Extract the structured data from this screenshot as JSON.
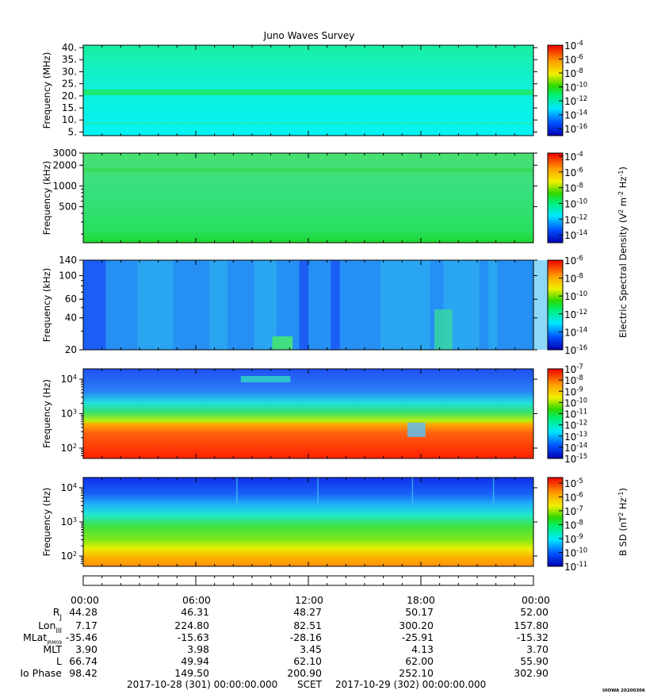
{
  "title": "Juno Waves Survey",
  "chart_data": [
    {
      "type": "heatmap",
      "ylabel": "Frequency (MHz)",
      "y_scale": "linear",
      "ylim": [
        3.5,
        41
      ],
      "y_ticks": [
        5,
        10,
        15,
        20,
        25,
        30,
        35,
        40
      ],
      "y_tick_labels": [
        "5.",
        "10.",
        "15.",
        "20.",
        "25.",
        "30.",
        "35.",
        "40."
      ],
      "colorbar": {
        "scale": "log",
        "range_exp": [
          -17,
          -4
        ],
        "tick_exps": [
          -4,
          -6,
          -8,
          -10,
          -12,
          -14,
          -16
        ],
        "label": ""
      }
    },
    {
      "type": "heatmap",
      "ylabel": "Frequency (kHz)",
      "y_scale": "log",
      "ylim": [
        150,
        3000
      ],
      "y_ticks": [
        500,
        1000,
        2000,
        3000
      ],
      "y_tick_labels": [
        "500",
        "1000",
        "2000",
        "3000"
      ],
      "colorbar": {
        "scale": "log",
        "range_exp": [
          -15,
          -3.6
        ],
        "tick_exps": [
          -4,
          -6,
          -8,
          -10,
          -12,
          -14
        ],
        "label": ""
      }
    },
    {
      "type": "heatmap",
      "ylabel": "Frequency (kHz)",
      "y_scale": "log",
      "ylim": [
        20,
        140
      ],
      "y_ticks": [
        20,
        40,
        60,
        100,
        140
      ],
      "y_tick_labels": [
        "20",
        "40",
        "60",
        "100",
        "140"
      ],
      "colorbar": {
        "scale": "log",
        "range_exp": [
          -16,
          -6
        ],
        "tick_exps": [
          -6,
          -8,
          -10,
          -12,
          -14,
          -16
        ],
        "label": ""
      }
    },
    {
      "type": "heatmap",
      "ylabel": "Frequency (Hz)",
      "y_scale": "log",
      "ylim": [
        50,
        20000
      ],
      "y_ticks": [
        100,
        1000,
        10000
      ],
      "y_tick_labels": [
        "10^2",
        "10^3",
        "10^4"
      ],
      "colorbar": {
        "scale": "log",
        "range_exp": [
          -15,
          -7
        ],
        "tick_exps": [
          -7,
          -8,
          -9,
          -10,
          -11,
          -12,
          -13,
          -14,
          -15
        ],
        "label": ""
      }
    },
    {
      "type": "heatmap",
      "ylabel": "Frequency (Hz)",
      "y_scale": "log",
      "ylim": [
        50,
        20000
      ],
      "y_ticks": [
        100,
        1000,
        10000
      ],
      "y_tick_labels": [
        "10^2",
        "10^3",
        "10^4"
      ],
      "colorbar": {
        "scale": "log",
        "range_exp": [
          -11,
          -4.6
        ],
        "tick_exps": [
          -5,
          -6,
          -7,
          -8,
          -9,
          -10,
          -11
        ],
        "label": "B SD (nT^2 Hz^-1)"
      }
    }
  ],
  "shared_colorbar_label": "Electric Spectral Density (V^2 m^-2 Hz^-1)",
  "x_axis": {
    "tick_labels": [
      "00:00",
      "06:00",
      "12:00",
      "18:00",
      "00:00"
    ],
    "rows": [
      {
        "label": "R",
        "sub": "J",
        "values": [
          "44.28",
          "46.31",
          "48.27",
          "50.17",
          "52.00"
        ]
      },
      {
        "label": "Lon",
        "sub": "III",
        "values": [
          "7.17",
          "224.80",
          "82.51",
          "300.20",
          "157.80"
        ]
      },
      {
        "label": "MLat",
        "sub": "JRM09",
        "values": [
          "-35.46",
          "-15.63",
          "-28.16",
          "-25.91",
          "-15.32"
        ]
      },
      {
        "label": "MLT",
        "sub": "",
        "values": [
          "3.90",
          "3.98",
          "3.45",
          "4.13",
          "3.70"
        ]
      },
      {
        "label": "L",
        "sub": "",
        "values": [
          "66.74",
          "49.94",
          "62.10",
          "62.00",
          "55.90"
        ]
      },
      {
        "label": "Io Phase",
        "sub": "",
        "values": [
          "98.42",
          "149.50",
          "200.90",
          "252.10",
          "302.90"
        ]
      }
    ]
  },
  "footer": {
    "start": "2017-10-28 (301) 00:00:00.000",
    "scet": "SCET",
    "end": "2017-10-29 (302) 00:00:00.000"
  },
  "stamp": "UIOWA 20200306"
}
